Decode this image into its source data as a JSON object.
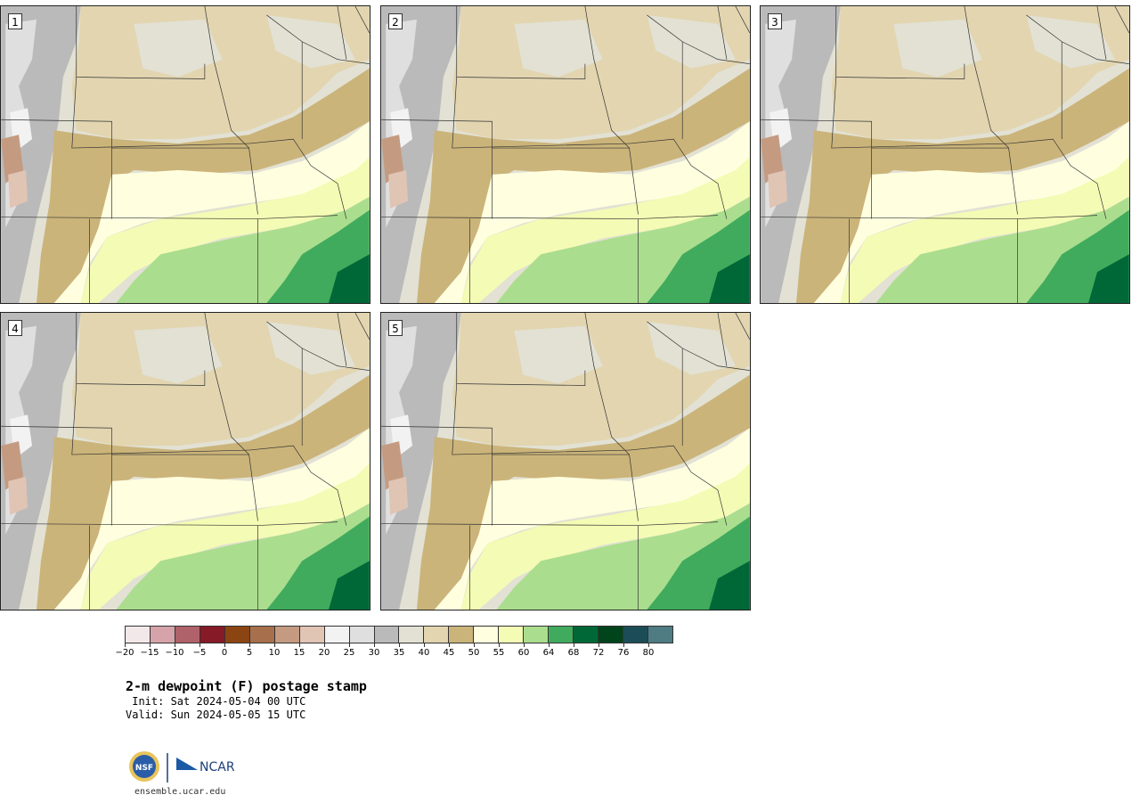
{
  "title": "2-m dewpoint (F) postage stamp",
  "init": " Init: Sat 2024-05-04 00 UTC",
  "valid": "Valid: Sun 2024-05-05 15 UTC",
  "website": "ensemble.ucar.edu",
  "logo_ncar": "NCAR",
  "logo_nsf": "NSF",
  "members": [
    "1",
    "2",
    "3",
    "4",
    "5"
  ],
  "colorbar": {
    "tick_labels": [
      "−20",
      "−15",
      "−10",
      "−5",
      "0",
      "5",
      "10",
      "15",
      "20",
      "25",
      "30",
      "35",
      "40",
      "45",
      "50",
      "55",
      "60",
      "64",
      "68",
      "72",
      "76",
      "80"
    ],
    "colors": [
      "#f2e8ea",
      "#d6a3aa",
      "#b0626a",
      "#861a26",
      "#8a4513",
      "#a86f4c",
      "#c49b81",
      "#e0c4b4",
      "#f2f2f2",
      "#dfdfdf",
      "#bababa",
      "#e2e1d4",
      "#e2d5b0",
      "#cbb47a",
      "#ffffe0",
      "#f4fbb4",
      "#abdd8e",
      "#41ab5d",
      "#006837",
      "#00441b",
      "#1c4d57",
      "#4f7c83"
    ]
  },
  "map_colors": {
    "mountain": "#bababa",
    "dry_35": "#e2e1d4",
    "tan_40": "#e2d5b0",
    "tan_45": "#cbb47a",
    "cream_50": "#ffffe0",
    "yellow_55": "#f4fbb4",
    "green_60": "#abdd8e",
    "green_64": "#41ab5d",
    "green_68": "#006837"
  }
}
